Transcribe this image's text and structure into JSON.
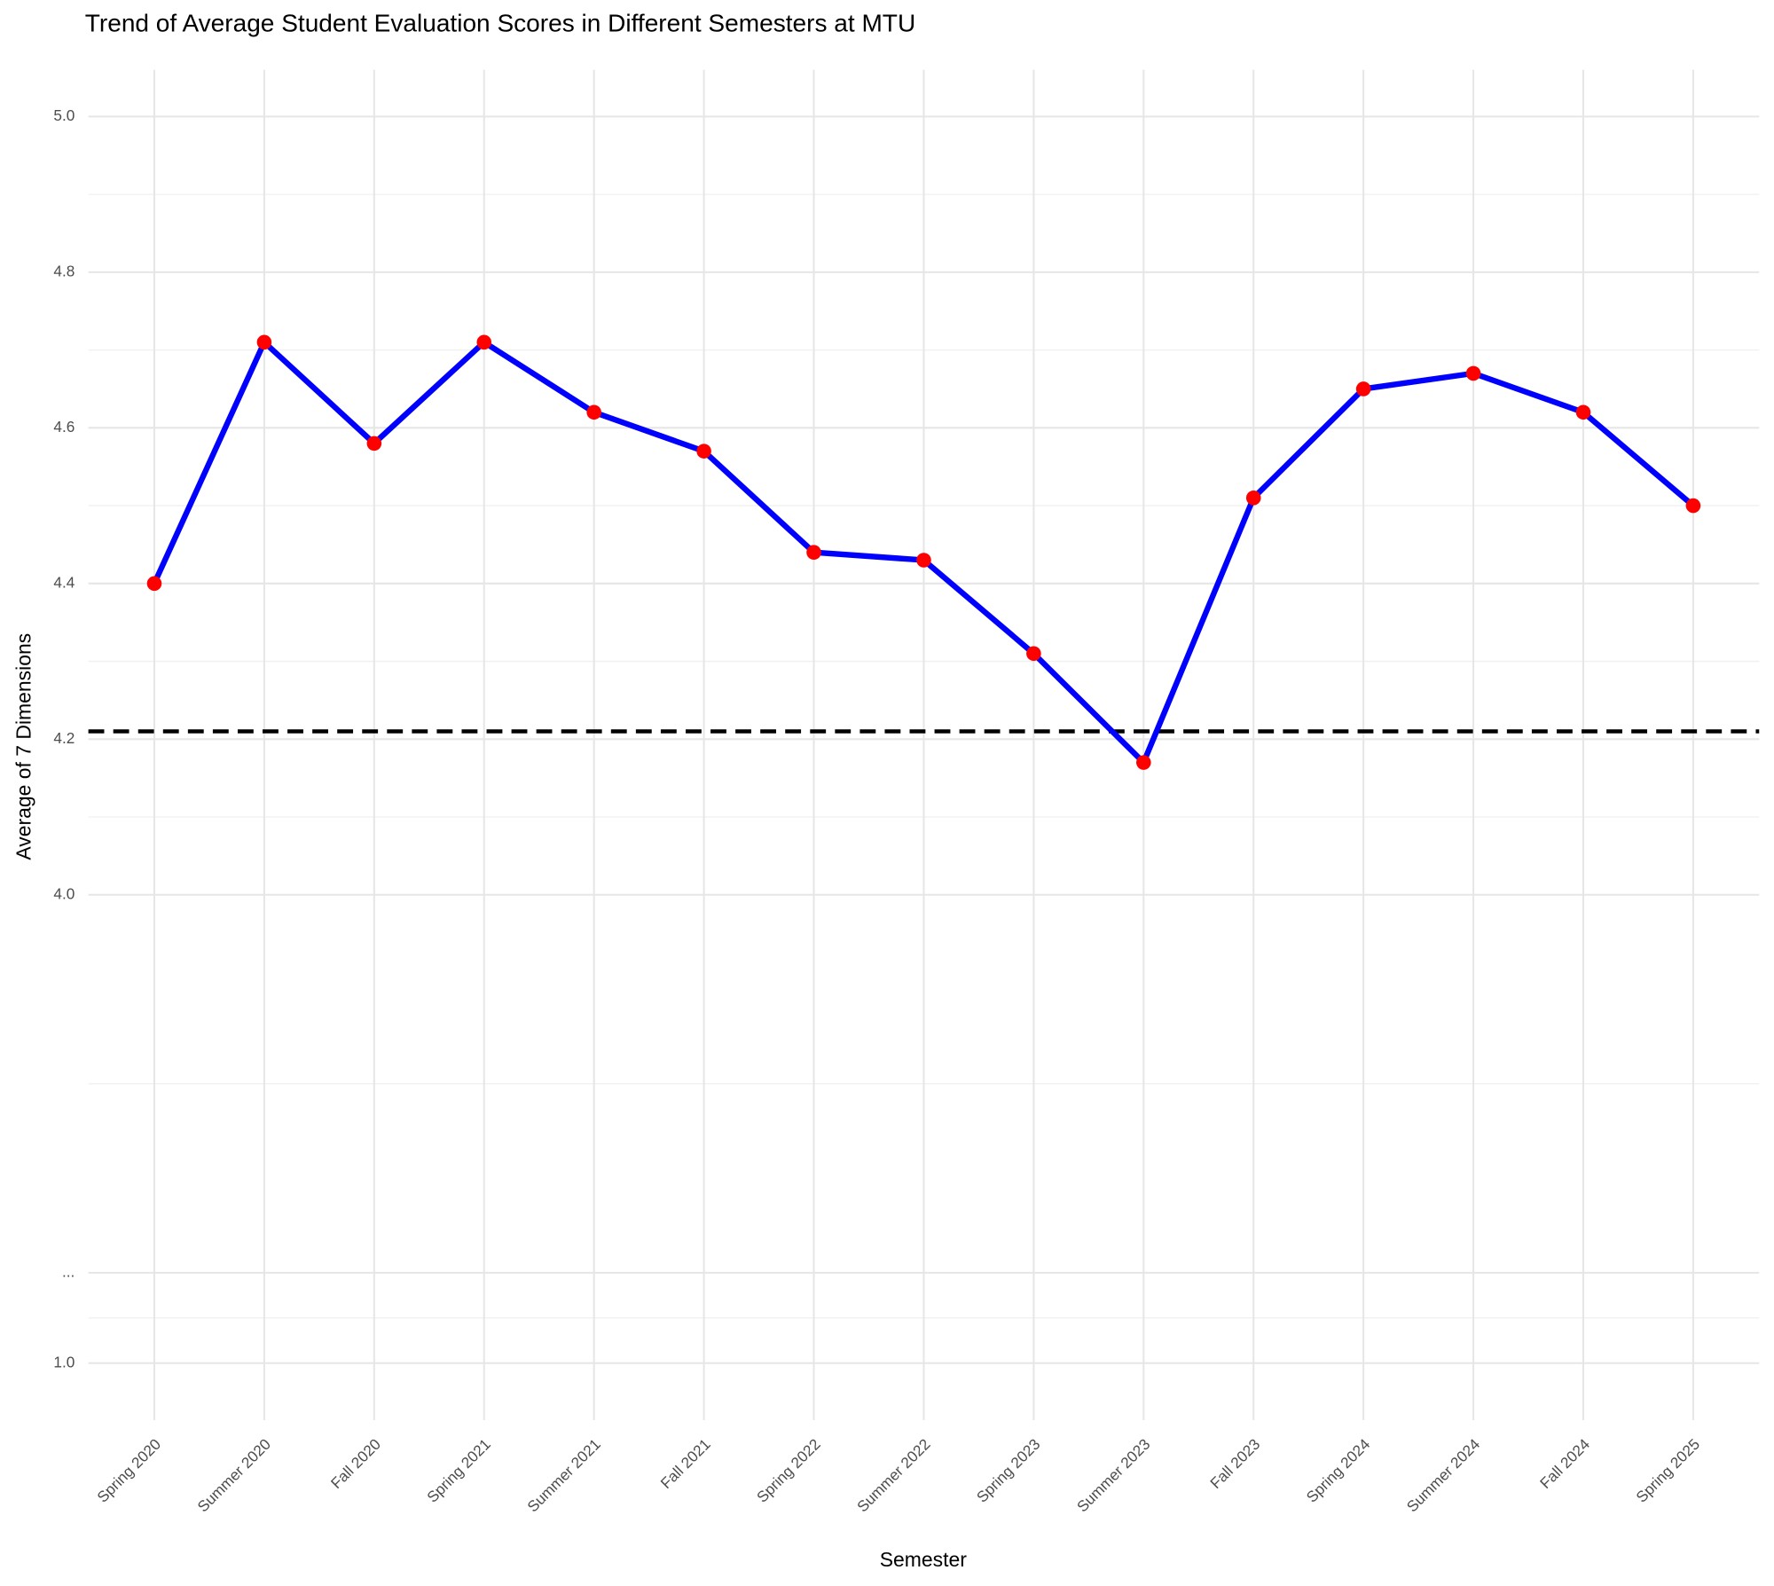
{
  "chart_data": {
    "type": "line",
    "title": "Trend of Average Student Evaluation Scores in Different Semesters at MTU",
    "x_label": "Semester",
    "y_label": "Average of 7 Dimensions",
    "categories": [
      "Spring 2020",
      "Summer 2020",
      "Fall 2020",
      "Spring 2021",
      "Summer 2021",
      "Fall 2021",
      "Spring 2022",
      "Summer 2022",
      "Spring 2023",
      "Summer 2023",
      "Fall 2023",
      "Spring 2024",
      "Summer 2024",
      "Fall 2024",
      "Spring 2025"
    ],
    "values": [
      4.4,
      4.71,
      4.58,
      4.71,
      4.62,
      4.57,
      4.44,
      4.43,
      4.31,
      4.17,
      4.51,
      4.65,
      4.67,
      4.62,
      4.5
    ],
    "color": "#0000ff",
    "marker_color": "#ff0000",
    "reference_line": 4.21,
    "reference_color": "#000000",
    "ylim": [
      0.78,
      5.06
    ],
    "axis_break": [
      1.0,
      4.0
    ],
    "yticks": [
      {
        "value": 1.0,
        "label": "1.0"
      },
      {
        "value": null,
        "label": "..."
      },
      {
        "value": 4.0,
        "label": "4.0"
      },
      {
        "value": 4.2,
        "label": "4.2"
      },
      {
        "value": 4.4,
        "label": "4.4"
      },
      {
        "value": 4.6,
        "label": "4.6"
      },
      {
        "value": 4.8,
        "label": "4.8"
      },
      {
        "value": 5.0,
        "label": "5.0"
      }
    ],
    "grid": true
  }
}
